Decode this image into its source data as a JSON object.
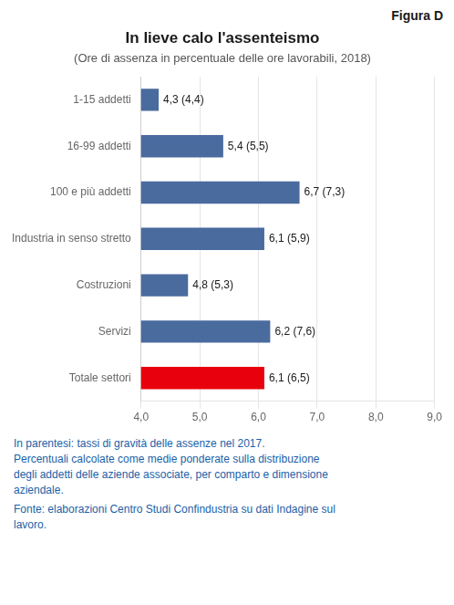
{
  "chart_data": {
    "type": "bar",
    "orientation": "horizontal",
    "title": "In lieve calo l'assenteismo",
    "subtitle": "(Ore di assenza in percentuale delle ore lavorabili, 2018)",
    "annotations": [
      "Figura D"
    ],
    "footnotes": [
      "In parentesi: tassi di gravità delle assenze nel 2017.",
      "Percentuali calcolate come medie ponderate sulla distribuzione",
      "degli addetti delle aziende associate, per comparto e dimensione",
      "aziendale."
    ],
    "source": "Fonte: elaborazioni Centro Studi Confindustria su dati Indagine sul\nlavoro.",
    "categories": [
      "Totale settori",
      "Servizi",
      "Costruzioni",
      "Industria in senso stretto",
      "100 e più addetti",
      "16-99 addetti",
      "1-15 addetti"
    ],
    "values": [
      6.1,
      6.2,
      4.8,
      6.1,
      6.7,
      5.4,
      4.3
    ],
    "value_labels": [
      "6,1 (6,5)",
      "6,2 (7,6)",
      "4,8 (5,3)",
      "6,1 (5,9)",
      "6,7 (7,3)",
      "5,4 (5,5)",
      "4,3 (4,4)"
    ],
    "colors": [
      "#e8000d",
      "#4a6b9e",
      "#4a6b9e",
      "#4a6b9e",
      "#4a6b9e",
      "#4a6b9e",
      "#4a6b9e"
    ],
    "xlim": [
      4.0,
      9.0
    ],
    "xticks": [
      {
        "value": 4.0,
        "label": "4,0"
      },
      {
        "value": 5.0,
        "label": "5,0"
      },
      {
        "value": 6.0,
        "label": "6,0"
      },
      {
        "value": 7.0,
        "label": "7,0"
      },
      {
        "value": 8.0,
        "label": "8,0"
      },
      {
        "value": 9.0,
        "label": "9,0"
      }
    ],
    "grid": true,
    "data_labels": true
  }
}
